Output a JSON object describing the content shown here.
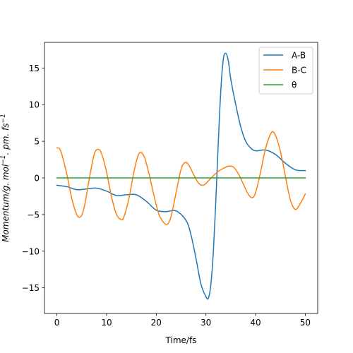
{
  "chart_data": {
    "type": "line",
    "xlabel": "Time/fs",
    "ylabel_main": "Momentum/g. mol",
    "ylabel_sup1": "−1",
    "ylabel_mid": ". pm. fs",
    "ylabel_sup2": "−1",
    "xlim": [
      -2.5,
      52.5
    ],
    "ylim": [
      -18.5,
      18.5
    ],
    "xticks": [
      0,
      10,
      20,
      30,
      40,
      50
    ],
    "xtick_labels": [
      "0",
      "10",
      "20",
      "30",
      "40",
      "50"
    ],
    "yticks": [
      -15,
      -10,
      -5,
      0,
      5,
      10,
      15
    ],
    "ytick_labels": [
      "−15",
      "−10",
      "−5",
      "0",
      "5",
      "10",
      "15"
    ],
    "grid": false,
    "legend_position": "top-right",
    "series": [
      {
        "name": "A-B",
        "color": "#1f77b4",
        "x": [
          0,
          2,
          4,
          6,
          8,
          10,
          12,
          14,
          16,
          18,
          20,
          22,
          24,
          26,
          27,
          28,
          29,
          30,
          30.5,
          31,
          31.5,
          32,
          32.5,
          33,
          33.5,
          34,
          34.5,
          35,
          36,
          37,
          38,
          39,
          40,
          42,
          44,
          46,
          48,
          50
        ],
        "y": [
          -1.0,
          -1.2,
          -1.6,
          -1.5,
          -1.4,
          -1.8,
          -2.4,
          -2.3,
          -2.3,
          -3.2,
          -4.4,
          -4.6,
          -4.5,
          -5.8,
          -7.8,
          -11.0,
          -14.5,
          -16.2,
          -16.4,
          -14.5,
          -10.0,
          -3.0,
          5.0,
          12.0,
          16.2,
          17.0,
          16.0,
          13.5,
          10.0,
          7.0,
          5.0,
          4.1,
          3.7,
          3.8,
          3.2,
          2.0,
          1.1,
          1.0
        ]
      },
      {
        "name": "B-C",
        "color": "#ff7f0e",
        "x": [
          0,
          0.5,
          1,
          2,
          3,
          4,
          4.8,
          5.5,
          6.5,
          7.5,
          8.3,
          9,
          10,
          11,
          12,
          13,
          13.5,
          14.5,
          15.5,
          16.5,
          17.5,
          18.5,
          19.5,
          20.5,
          21.5,
          22.3,
          23,
          24,
          25,
          25.8,
          26.5,
          27.5,
          28.5,
          29.5,
          30.5,
          31.5,
          32.5,
          33.5,
          34.5,
          35.5,
          36.5,
          37.5,
          38.5,
          39.3,
          40,
          41,
          42,
          43.2,
          44,
          45,
          46,
          47,
          48,
          49,
          50
        ],
        "y": [
          4.1,
          4.0,
          3.2,
          0.5,
          -2.8,
          -5.0,
          -5.3,
          -4.0,
          -0.2,
          3.2,
          3.9,
          3.3,
          0.8,
          -2.6,
          -5.0,
          -5.7,
          -5.3,
          -2.8,
          0.8,
          3.3,
          3.0,
          0.7,
          -2.3,
          -4.9,
          -6.1,
          -6.3,
          -5.2,
          -2.0,
          1.2,
          2.1,
          1.8,
          0.5,
          -0.7,
          -1.0,
          -0.4,
          0.3,
          0.9,
          1.3,
          1.6,
          1.5,
          0.6,
          -0.8,
          -2.2,
          -2.7,
          -2.0,
          0.8,
          4.0,
          6.2,
          5.8,
          3.6,
          0.2,
          -3.0,
          -4.3,
          -3.5,
          -2.2
        ]
      },
      {
        "name": "θ",
        "color": "#2ca02c",
        "x": [
          0,
          50
        ],
        "y": [
          0.0,
          0.0
        ]
      }
    ]
  }
}
